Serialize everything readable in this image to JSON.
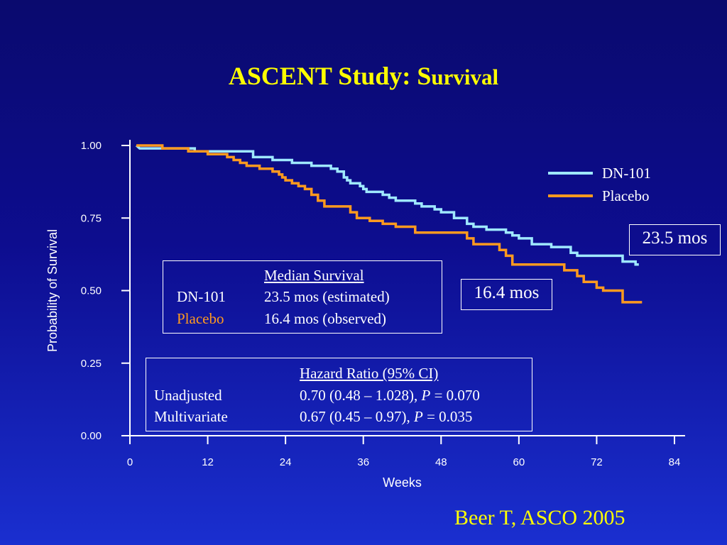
{
  "title": {
    "main": "ASCENT Study: S",
    "sub": "urvival"
  },
  "citation": "Beer T, ASCO 2005",
  "annotations": {
    "dn101_median": "23.5 mos",
    "placebo_median": "16.4 mos"
  },
  "median_box": {
    "header": "Median Survival",
    "rows": [
      {
        "label": "DN-101",
        "value": "23.5 mos (estimated)"
      },
      {
        "label": "Placebo",
        "value": "16.4 mos (observed)"
      }
    ]
  },
  "hazard_box": {
    "header": "Hazard Ratio (95% CI)",
    "rows": [
      {
        "label": "Unadjusted",
        "pre": "0.70 (0.48 – 1.028), ",
        "p": "P",
        "post": " = 0.070"
      },
      {
        "label": "Multivariate",
        "pre": "0.67 (0.45 –  0.97), ",
        "p": "P",
        "post": " = 0.035"
      }
    ]
  },
  "colors": {
    "background": "#0d0d8f",
    "title": "#ffff00",
    "dn101": "#9fe8ff",
    "placebo": "#ff9a1f",
    "placebo_label": "#ff9a1f",
    "axis": "#ffffff"
  },
  "chart_data": {
    "type": "line",
    "title": "ASCENT Study: Survival",
    "xlabel": "Weeks",
    "ylabel": "Probability of Survival",
    "xlim": [
      0,
      84
    ],
    "ylim": [
      0,
      1
    ],
    "x_ticks": [
      0,
      12,
      24,
      36,
      48,
      60,
      72,
      84
    ],
    "y_ticks": [
      0.0,
      0.25,
      0.5,
      0.75,
      1.0
    ],
    "y_tick_labels": [
      "0.00",
      "0.25",
      "0.50",
      "0.75",
      "1.00"
    ],
    "legend_position": "top-right",
    "series": [
      {
        "name": "DN-101",
        "color": "#9fe8ff",
        "step": true,
        "points": [
          [
            1,
            1.0
          ],
          [
            1.5,
            0.99
          ],
          [
            10,
            0.99
          ],
          [
            10,
            0.98
          ],
          [
            19,
            0.98
          ],
          [
            19,
            0.96
          ],
          [
            22,
            0.96
          ],
          [
            22,
            0.95
          ],
          [
            25,
            0.95
          ],
          [
            25,
            0.94
          ],
          [
            28,
            0.94
          ],
          [
            28,
            0.93
          ],
          [
            31,
            0.93
          ],
          [
            31,
            0.92
          ],
          [
            32,
            0.92
          ],
          [
            32,
            0.91
          ],
          [
            33,
            0.91
          ],
          [
            33,
            0.89
          ],
          [
            33.5,
            0.89
          ],
          [
            33.5,
            0.88
          ],
          [
            34,
            0.88
          ],
          [
            34,
            0.87
          ],
          [
            35.5,
            0.87
          ],
          [
            35.5,
            0.86
          ],
          [
            36,
            0.86
          ],
          [
            36,
            0.85
          ],
          [
            36.5,
            0.85
          ],
          [
            36.5,
            0.84
          ],
          [
            39,
            0.84
          ],
          [
            39,
            0.83
          ],
          [
            40,
            0.83
          ],
          [
            40,
            0.82
          ],
          [
            41,
            0.82
          ],
          [
            41,
            0.81
          ],
          [
            44,
            0.81
          ],
          [
            44,
            0.8
          ],
          [
            45,
            0.8
          ],
          [
            45,
            0.79
          ],
          [
            47,
            0.79
          ],
          [
            47,
            0.78
          ],
          [
            48,
            0.78
          ],
          [
            48,
            0.77
          ],
          [
            50,
            0.77
          ],
          [
            50,
            0.75
          ],
          [
            52,
            0.75
          ],
          [
            52,
            0.73
          ],
          [
            53,
            0.73
          ],
          [
            53,
            0.72
          ],
          [
            55,
            0.72
          ],
          [
            55,
            0.71
          ],
          [
            58,
            0.71
          ],
          [
            58,
            0.7
          ],
          [
            59,
            0.7
          ],
          [
            59,
            0.69
          ],
          [
            60,
            0.69
          ],
          [
            60,
            0.68
          ],
          [
            62,
            0.68
          ],
          [
            62,
            0.66
          ],
          [
            65,
            0.66
          ],
          [
            65,
            0.65
          ],
          [
            68,
            0.65
          ],
          [
            68,
            0.63
          ],
          [
            69,
            0.63
          ],
          [
            69,
            0.62
          ],
          [
            76,
            0.62
          ],
          [
            76,
            0.6
          ],
          [
            78,
            0.6
          ],
          [
            78,
            0.59
          ],
          [
            78.5,
            0.59
          ]
        ]
      },
      {
        "name": "Placebo",
        "color": "#ff9a1f",
        "step": true,
        "points": [
          [
            1,
            1.0
          ],
          [
            5,
            1.0
          ],
          [
            5,
            0.99
          ],
          [
            9,
            0.99
          ],
          [
            9,
            0.98
          ],
          [
            12,
            0.98
          ],
          [
            12,
            0.97
          ],
          [
            15,
            0.97
          ],
          [
            15,
            0.96
          ],
          [
            16,
            0.96
          ],
          [
            16,
            0.95
          ],
          [
            17,
            0.95
          ],
          [
            17,
            0.94
          ],
          [
            18,
            0.94
          ],
          [
            18,
            0.93
          ],
          [
            20,
            0.93
          ],
          [
            20,
            0.92
          ],
          [
            22,
            0.92
          ],
          [
            22,
            0.91
          ],
          [
            23,
            0.91
          ],
          [
            23,
            0.9
          ],
          [
            23.5,
            0.9
          ],
          [
            23.5,
            0.89
          ],
          [
            24,
            0.89
          ],
          [
            24,
            0.88
          ],
          [
            25,
            0.88
          ],
          [
            25,
            0.87
          ],
          [
            26,
            0.87
          ],
          [
            26,
            0.86
          ],
          [
            27,
            0.86
          ],
          [
            27,
            0.85
          ],
          [
            28,
            0.85
          ],
          [
            28,
            0.83
          ],
          [
            29,
            0.83
          ],
          [
            29,
            0.81
          ],
          [
            30,
            0.81
          ],
          [
            30,
            0.79
          ],
          [
            34,
            0.79
          ],
          [
            34,
            0.77
          ],
          [
            35,
            0.77
          ],
          [
            35,
            0.75
          ],
          [
            37,
            0.75
          ],
          [
            37,
            0.74
          ],
          [
            39,
            0.74
          ],
          [
            39,
            0.73
          ],
          [
            41,
            0.73
          ],
          [
            41,
            0.72
          ],
          [
            44,
            0.72
          ],
          [
            44,
            0.7
          ],
          [
            52,
            0.7
          ],
          [
            52,
            0.68
          ],
          [
            53,
            0.68
          ],
          [
            53,
            0.66
          ],
          [
            57,
            0.66
          ],
          [
            57,
            0.64
          ],
          [
            58,
            0.64
          ],
          [
            58,
            0.62
          ],
          [
            59,
            0.62
          ],
          [
            59,
            0.59
          ],
          [
            67,
            0.59
          ],
          [
            67,
            0.57
          ],
          [
            69,
            0.57
          ],
          [
            69,
            0.55
          ],
          [
            70,
            0.55
          ],
          [
            70,
            0.53
          ],
          [
            72,
            0.53
          ],
          [
            72,
            0.51
          ],
          [
            73,
            0.51
          ],
          [
            73,
            0.5
          ],
          [
            76,
            0.5
          ],
          [
            76,
            0.46
          ],
          [
            79,
            0.46
          ]
        ]
      }
    ]
  }
}
